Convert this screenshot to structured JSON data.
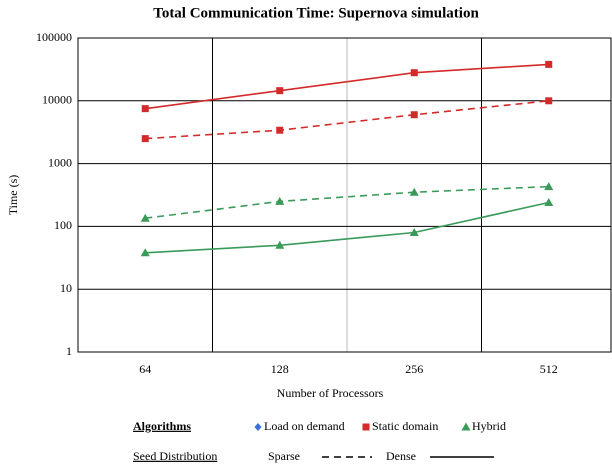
{
  "chart_data": {
    "type": "line",
    "title": "Total Communication Time: Supernova simulation",
    "x_label": "Number of Processors",
    "y_label": "Time (s)",
    "categories": [
      "64",
      "128",
      "256",
      "512"
    ],
    "ylim": [
      1,
      100000
    ],
    "yticks": [
      1,
      10,
      100,
      1000,
      10000,
      100000
    ],
    "log_y": true,
    "grid": true,
    "legend": {
      "algorithms_title": "Algorithms",
      "algorithms": [
        {
          "name": "Load on demand",
          "color": "#3a6fd8",
          "marker": "diamond"
        },
        {
          "name": "Static domain",
          "color": "#d42a2a",
          "marker": "square"
        },
        {
          "name": "Hybrid",
          "color": "#3a9a5a",
          "marker": "triangle"
        }
      ],
      "distribution_title": "Seed Distribution",
      "distributions": [
        {
          "name": "Sparse",
          "line_style": "dashed"
        },
        {
          "name": "Dense",
          "line_style": "solid"
        }
      ]
    },
    "series": [
      {
        "algorithm": "Static domain",
        "distribution": "Dense",
        "values": [
          7500,
          14500,
          28000,
          38000
        ]
      },
      {
        "algorithm": "Static domain",
        "distribution": "Sparse",
        "values": [
          2500,
          3400,
          6000,
          10000
        ]
      },
      {
        "algorithm": "Hybrid",
        "distribution": "Sparse",
        "values": [
          135,
          250,
          350,
          430
        ]
      },
      {
        "algorithm": "Hybrid",
        "distribution": "Dense",
        "values": [
          38,
          50,
          80,
          240
        ]
      }
    ]
  }
}
